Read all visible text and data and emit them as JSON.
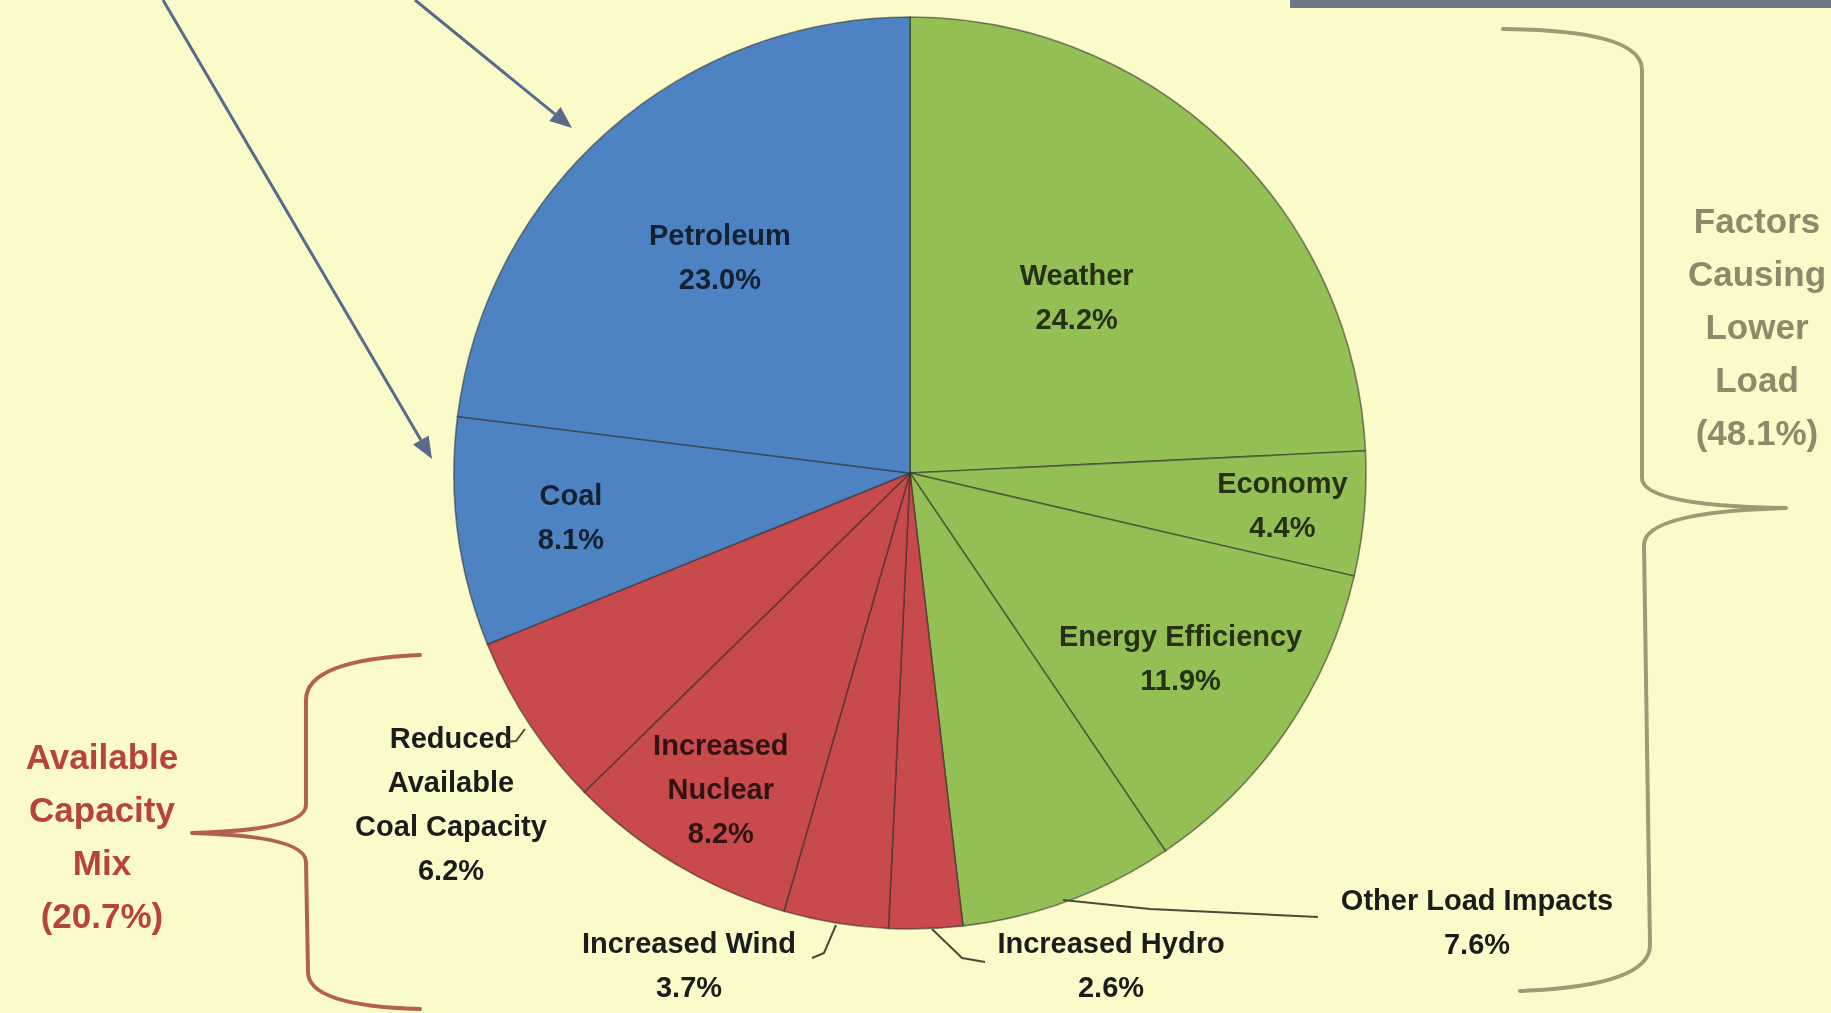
{
  "chart_data": {
    "type": "pie",
    "categories": [
      "Weather",
      "Economy",
      "Energy Efficiency",
      "Other Load Impacts",
      "Increased Hydro",
      "Increased Wind",
      "Increased Nuclear",
      "Reduced Available Coal Capacity",
      "Coal",
      "Petroleum"
    ],
    "values": [
      24.2,
      4.4,
      11.9,
      7.6,
      2.6,
      3.7,
      8.2,
      6.2,
      8.1,
      23.0
    ],
    "value_labels": [
      "24.2%",
      "4.4%",
      "11.9%",
      "7.6%",
      "2.6%",
      "3.7%",
      "8.2%",
      "6.2%",
      "8.1%",
      "23.0%"
    ],
    "colors": [
      "#93bf55",
      "#93bf55",
      "#93bf55",
      "#93bf55",
      "#c94a4d",
      "#c94a4d",
      "#c94a4d",
      "#c94a4d",
      "#4e83c3",
      "#4e83c3"
    ],
    "annotations": [
      "Factors Causing Lower Load (48.1%)",
      "Available Capacity Mix (20.7%)"
    ]
  }
}
